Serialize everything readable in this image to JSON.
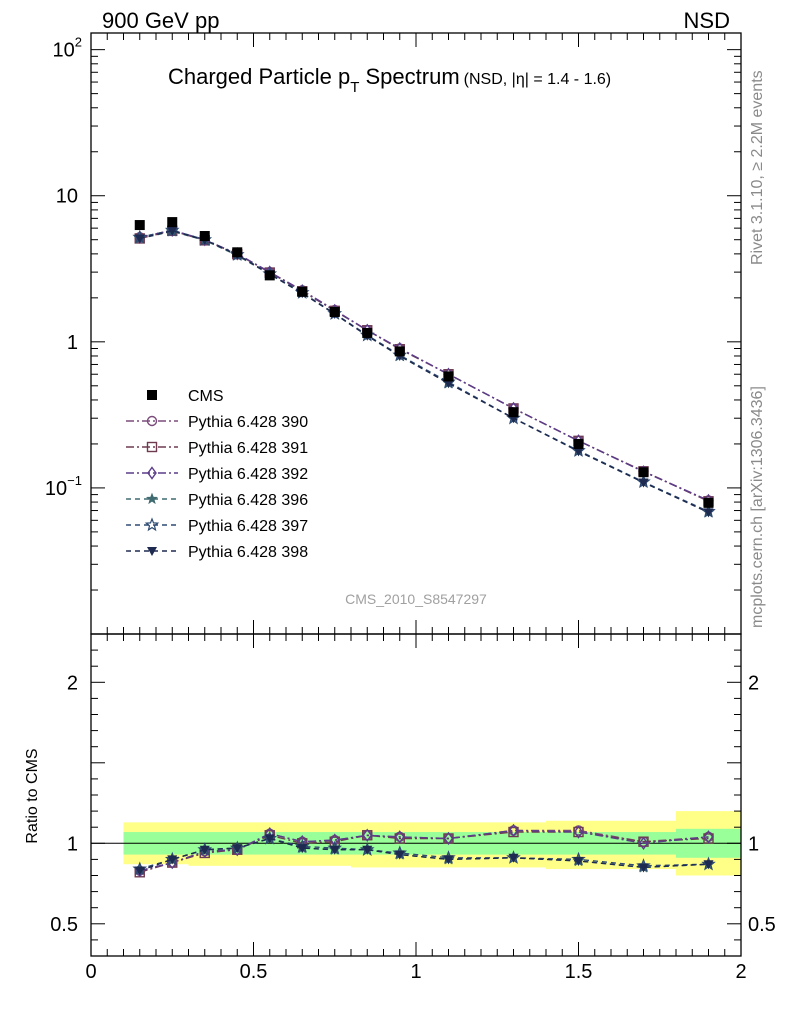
{
  "header": {
    "energy": "900 GeV pp",
    "process": "NSD"
  },
  "chart_data": [
    {
      "type": "scatter",
      "title_main": "Charged Particle p",
      "title_sub": "T",
      "title_main2": " Spectrum",
      "title_suffix": "(NSD, |η| = 1.4 - 1.6)",
      "analysis_id": "CMS_2010_S8547297",
      "side_label_top": "Rivet 3.1.10, ≥ 2.2M events",
      "side_label_bottom": "mcplots.cern.ch [arXiv:1306.3436]",
      "yscale": "log",
      "xlim": [
        0,
        2
      ],
      "ylim": [
        0.01,
        130
      ],
      "yticks": [
        {
          "v": 0.1,
          "base": "10",
          "exp": "−1"
        },
        {
          "v": 1,
          "base": "1",
          "exp": ""
        },
        {
          "v": 10,
          "base": "10",
          "exp": ""
        },
        {
          "v": 100,
          "base": "10",
          "exp": "2"
        }
      ],
      "x": [
        0.15,
        0.25,
        0.35,
        0.45,
        0.55,
        0.65,
        0.75,
        0.85,
        0.95,
        1.1,
        1.3,
        1.5,
        1.7,
        1.9
      ],
      "data": {
        "name": "CMS",
        "color": "#000000",
        "values": [
          6.3,
          6.6,
          5.3,
          4.1,
          2.85,
          2.2,
          1.6,
          1.15,
          0.86,
          0.58,
          0.33,
          0.2,
          0.128,
          0.079
        ]
      },
      "series": [
        {
          "name": "Pythia 6.428 390",
          "color": "#7b4b7b",
          "marker": "circle-open",
          "dash": "8,3,2,3",
          "values": [
            5.2,
            5.8,
            5.0,
            4.0,
            3.0,
            2.25,
            1.65,
            1.2,
            0.9,
            0.6,
            0.35,
            0.21,
            0.13,
            0.082
          ]
        },
        {
          "name": "Pythia 6.428 391",
          "color": "#6e3a50",
          "marker": "square-open",
          "dash": "8,3,2,3",
          "values": [
            5.1,
            5.75,
            4.95,
            3.98,
            2.98,
            2.22,
            1.63,
            1.2,
            0.89,
            0.6,
            0.35,
            0.21,
            0.13,
            0.081
          ]
        },
        {
          "name": "Pythia 6.428 392",
          "color": "#5b3d8a",
          "marker": "diamond-open",
          "dash": "8,3,2,3",
          "values": [
            5.2,
            5.8,
            5.0,
            4.0,
            3.0,
            2.24,
            1.64,
            1.2,
            0.9,
            0.6,
            0.35,
            0.21,
            0.129,
            0.082
          ]
        },
        {
          "name": "Pythia 6.428 396",
          "color": "#3e6a70",
          "marker": "star-filled",
          "dash": "5,4",
          "values": [
            5.1,
            5.7,
            4.95,
            3.9,
            2.9,
            2.15,
            1.55,
            1.1,
            0.8,
            0.52,
            0.3,
            0.178,
            0.109,
            0.068
          ]
        },
        {
          "name": "Pythia 6.428 397",
          "color": "#2e4a72",
          "marker": "star-open",
          "dash": "5,4",
          "values": [
            5.2,
            5.8,
            5.0,
            3.95,
            2.92,
            2.17,
            1.56,
            1.11,
            0.81,
            0.53,
            0.3,
            0.18,
            0.11,
            0.069
          ]
        },
        {
          "name": "Pythia 6.428 398",
          "color": "#1e2a50",
          "marker": "triangle-down",
          "dash": "5,4",
          "values": [
            5.1,
            5.75,
            4.98,
            3.95,
            2.9,
            2.15,
            1.55,
            1.1,
            0.8,
            0.52,
            0.3,
            0.178,
            0.109,
            0.068
          ]
        }
      ]
    },
    {
      "type": "scatter",
      "ylabel": "Ratio to CMS",
      "xlim": [
        0,
        2
      ],
      "ylim": [
        0.3,
        2.3
      ],
      "xticks": [
        {
          "v": 0,
          "label": "0"
        },
        {
          "v": 0.5,
          "label": "0.5"
        },
        {
          "v": 1,
          "label": "1"
        },
        {
          "v": 1.5,
          "label": "1.5"
        },
        {
          "v": 2,
          "label": "2"
        }
      ],
      "yticks": [
        {
          "v": 0.5,
          "label": "0.5"
        },
        {
          "v": 1,
          "label": "1"
        },
        {
          "v": 2,
          "label": "2"
        }
      ],
      "bands": {
        "bins": [
          [
            0.1,
            0.2
          ],
          [
            0.2,
            0.3
          ],
          [
            0.3,
            0.4
          ],
          [
            0.4,
            0.5
          ],
          [
            0.5,
            0.6
          ],
          [
            0.6,
            0.7
          ],
          [
            0.7,
            0.8
          ],
          [
            0.8,
            0.9
          ],
          [
            0.9,
            1.0
          ],
          [
            1.0,
            1.2
          ],
          [
            1.2,
            1.4
          ],
          [
            1.4,
            1.6
          ],
          [
            1.6,
            1.8
          ],
          [
            1.8,
            2.0
          ]
        ],
        "inner_lo": [
          0.93,
          0.93,
          0.93,
          0.93,
          0.93,
          0.93,
          0.93,
          0.93,
          0.93,
          0.93,
          0.93,
          0.93,
          0.93,
          0.91
        ],
        "inner_hi": [
          1.07,
          1.07,
          1.07,
          1.07,
          1.07,
          1.07,
          1.07,
          1.07,
          1.07,
          1.07,
          1.07,
          1.07,
          1.07,
          1.09
        ],
        "outer_lo": [
          0.87,
          0.87,
          0.86,
          0.86,
          0.86,
          0.86,
          0.86,
          0.85,
          0.85,
          0.85,
          0.85,
          0.84,
          0.84,
          0.8
        ],
        "outer_hi": [
          1.13,
          1.13,
          1.13,
          1.13,
          1.13,
          1.13,
          1.13,
          1.13,
          1.13,
          1.13,
          1.13,
          1.14,
          1.14,
          1.2
        ],
        "inner_color": "#99ff99",
        "outer_color": "#ffff88"
      },
      "ratio_series": [
        {
          "name": "Pythia 6.428 390",
          "values": [
            0.83,
            0.88,
            0.95,
            0.96,
            1.06,
            1.01,
            1.02,
            1.05,
            1.04,
            1.03,
            1.08,
            1.08,
            1.01,
            1.04
          ]
        },
        {
          "name": "Pythia 6.428 391",
          "values": [
            0.82,
            0.88,
            0.94,
            0.96,
            1.05,
            1.0,
            1.01,
            1.05,
            1.03,
            1.03,
            1.07,
            1.07,
            1.01,
            1.03
          ]
        },
        {
          "name": "Pythia 6.428 392",
          "values": [
            0.83,
            0.88,
            0.95,
            0.96,
            1.06,
            1.01,
            1.02,
            1.05,
            1.04,
            1.03,
            1.08,
            1.07,
            1.0,
            1.04
          ]
        },
        {
          "name": "Pythia 6.428 396",
          "values": [
            0.84,
            0.9,
            0.96,
            0.97,
            1.03,
            0.97,
            0.96,
            0.96,
            0.93,
            0.9,
            0.91,
            0.89,
            0.85,
            0.87
          ]
        },
        {
          "name": "Pythia 6.428 397",
          "values": [
            0.84,
            0.9,
            0.96,
            0.97,
            1.03,
            0.98,
            0.97,
            0.96,
            0.94,
            0.91,
            0.91,
            0.9,
            0.86,
            0.87
          ]
        },
        {
          "name": "Pythia 6.428 398",
          "values": [
            0.83,
            0.9,
            0.96,
            0.97,
            1.03,
            0.97,
            0.96,
            0.96,
            0.93,
            0.9,
            0.91,
            0.89,
            0.85,
            0.87
          ]
        }
      ]
    }
  ]
}
